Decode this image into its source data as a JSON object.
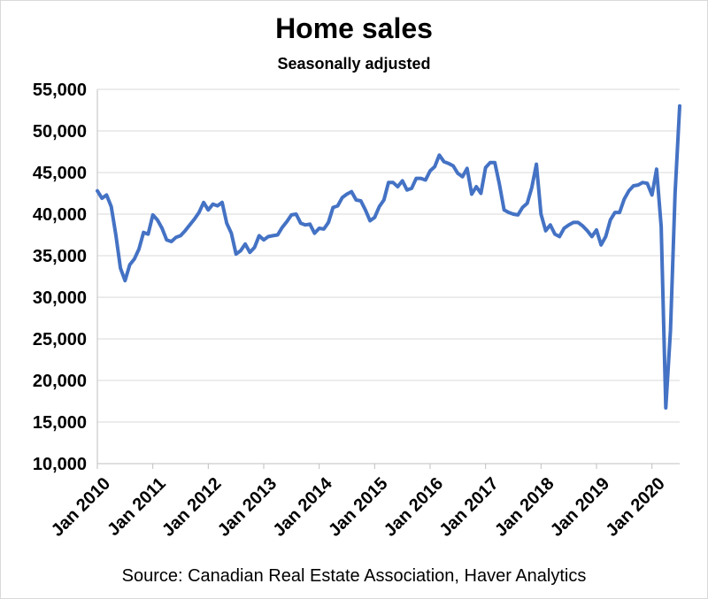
{
  "chart_data": {
    "type": "line",
    "title": "Home sales",
    "subtitle": "Seasonally adjusted",
    "source": "Source: Canadian Real Estate Association, Haver Analytics",
    "xlabel": "",
    "ylabel": "",
    "ylim": [
      10000,
      55000
    ],
    "y_ticks": [
      10000,
      15000,
      20000,
      25000,
      30000,
      35000,
      40000,
      45000,
      50000,
      55000
    ],
    "y_tick_labels": [
      "10,000",
      "15,000",
      "20,000",
      "25,000",
      "30,000",
      "35,000",
      "40,000",
      "45,000",
      "50,000",
      "55,000"
    ],
    "x_tick_labels": [
      "Jan 2010",
      "Jan 2011",
      "Jan 2012",
      "Jan 2013",
      "Jan 2014",
      "Jan 2015",
      "Jan 2016",
      "Jan 2017",
      "Jan 2018",
      "Jan 2019",
      "Jan 2020"
    ],
    "x_tick_index": [
      0,
      12,
      24,
      36,
      48,
      60,
      72,
      84,
      96,
      108,
      120
    ],
    "grid": "horizontal",
    "line_color": "#4472c4",
    "series": [
      {
        "name": "Home sales",
        "start": "Jan 2010",
        "values": [
          42800,
          41900,
          42300,
          40900,
          37500,
          33500,
          32000,
          33900,
          34600,
          35800,
          37800,
          37600,
          39900,
          39300,
          38300,
          36900,
          36700,
          37200,
          37400,
          38000,
          38700,
          39400,
          40200,
          41400,
          40500,
          41200,
          41000,
          41400,
          38900,
          37700,
          35200,
          35600,
          36400,
          35400,
          36000,
          37400,
          36900,
          37300,
          37400,
          37500,
          38400,
          39100,
          39900,
          40000,
          38900,
          38700,
          38800,
          37700,
          38300,
          38200,
          39000,
          40800,
          41000,
          42000,
          42400,
          42700,
          41700,
          41600,
          40500,
          39200,
          39600,
          40900,
          41700,
          43800,
          43800,
          43300,
          44000,
          42900,
          43100,
          44300,
          44300,
          44100,
          45200,
          45700,
          47100,
          46300,
          46100,
          45800,
          44900,
          44500,
          45500,
          42400,
          43300,
          42500,
          45600,
          46200,
          46200,
          43600,
          40500,
          40200,
          40000,
          39900,
          40800,
          41300,
          43200,
          46000,
          40000,
          38000,
          38700,
          37600,
          37300,
          38300,
          38700,
          39000,
          39000,
          38600,
          38000,
          37300,
          38100,
          36300,
          37300,
          39300,
          40200,
          40200,
          41800,
          42800,
          43400,
          43500,
          43800,
          43700,
          42300,
          45400,
          38500,
          16700,
          26000,
          42500,
          53000
        ]
      }
    ]
  }
}
